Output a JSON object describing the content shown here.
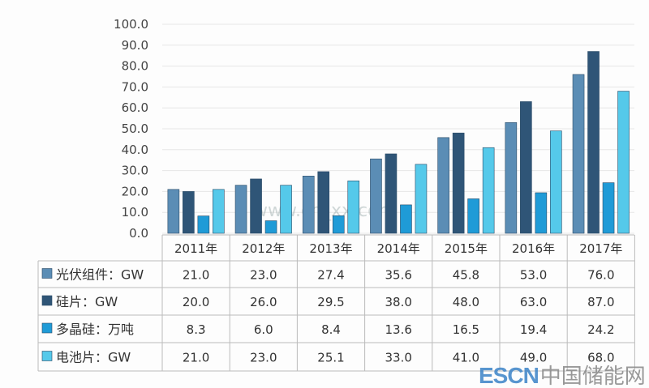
{
  "chart_data": {
    "type": "bar",
    "categories": [
      "2011年",
      "2012年",
      "2013年",
      "2014年",
      "2015年",
      "2016年",
      "2017年"
    ],
    "series": [
      {
        "name": "光伏组件：GW",
        "color": "#5b8db5",
        "values": [
          21.0,
          23.0,
          27.4,
          35.6,
          45.8,
          53.0,
          76.0
        ]
      },
      {
        "name": "硅片：GW",
        "color": "#2f5577",
        "values": [
          20.0,
          26.0,
          29.5,
          38.0,
          48.0,
          63.0,
          87.0
        ]
      },
      {
        "name": "多晶硅：万吨",
        "color": "#1f9bd7",
        "values": [
          8.3,
          6.0,
          8.4,
          13.6,
          16.5,
          19.4,
          24.2
        ]
      },
      {
        "name": "电池片：GW",
        "color": "#55c9ea",
        "values": [
          21.0,
          23.0,
          25.1,
          33.0,
          41.0,
          49.0,
          68.0
        ]
      }
    ],
    "ylim": [
      0,
      100
    ],
    "yticks": [
      "0.0",
      "10.0",
      "20.0",
      "30.0",
      "40.0",
      "50.0",
      "60.0",
      "70.0",
      "80.0",
      "90.0",
      "100.0"
    ],
    "grid": true,
    "legend": "data-table"
  },
  "watermark": {
    "center": "www.ch_xx.com",
    "logo_en": "ESCN",
    "logo_cn": "中国储能网"
  }
}
